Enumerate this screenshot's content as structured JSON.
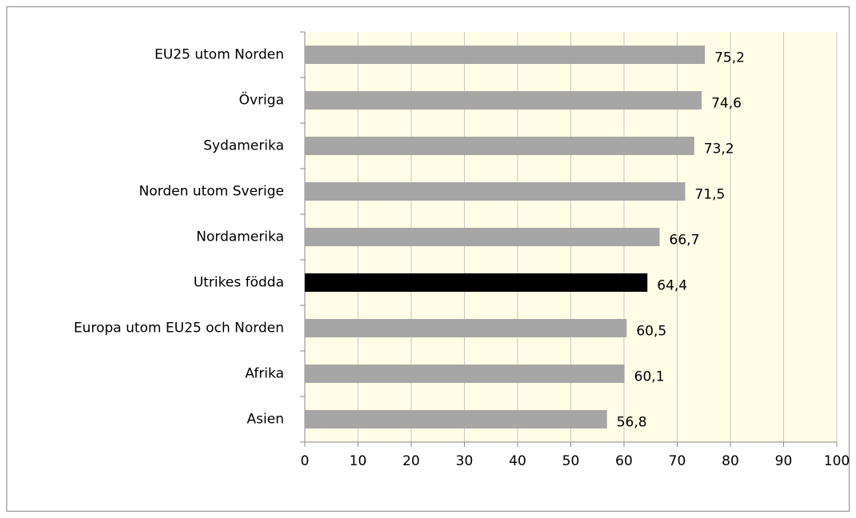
{
  "chart_data": {
    "type": "hbar",
    "categories": [
      "EU25 utom Norden",
      "Övriga",
      "Sydamerika",
      "Norden utom Sverige",
      "Nordamerika",
      "Utrikes födda",
      "Europa utom EU25 och Norden",
      "Afrika",
      "Asien"
    ],
    "values": [
      75.2,
      74.6,
      73.2,
      71.5,
      66.7,
      64.4,
      60.5,
      60.1,
      56.8
    ],
    "value_labels": [
      "75,2",
      "74,6",
      "73,2",
      "71,5",
      "66,7",
      "64,4",
      "60,5",
      "60,1",
      "56,8"
    ],
    "colors": [
      "#a6a6a6",
      "#a6a6a6",
      "#a6a6a6",
      "#a6a6a6",
      "#a6a6a6",
      "#000000",
      "#a6a6a6",
      "#a6a6a6",
      "#a6a6a6"
    ],
    "xlim": [
      0,
      100
    ],
    "xticks": [
      0,
      10,
      20,
      30,
      40,
      50,
      60,
      70,
      80,
      90,
      100
    ],
    "grid": true
  }
}
